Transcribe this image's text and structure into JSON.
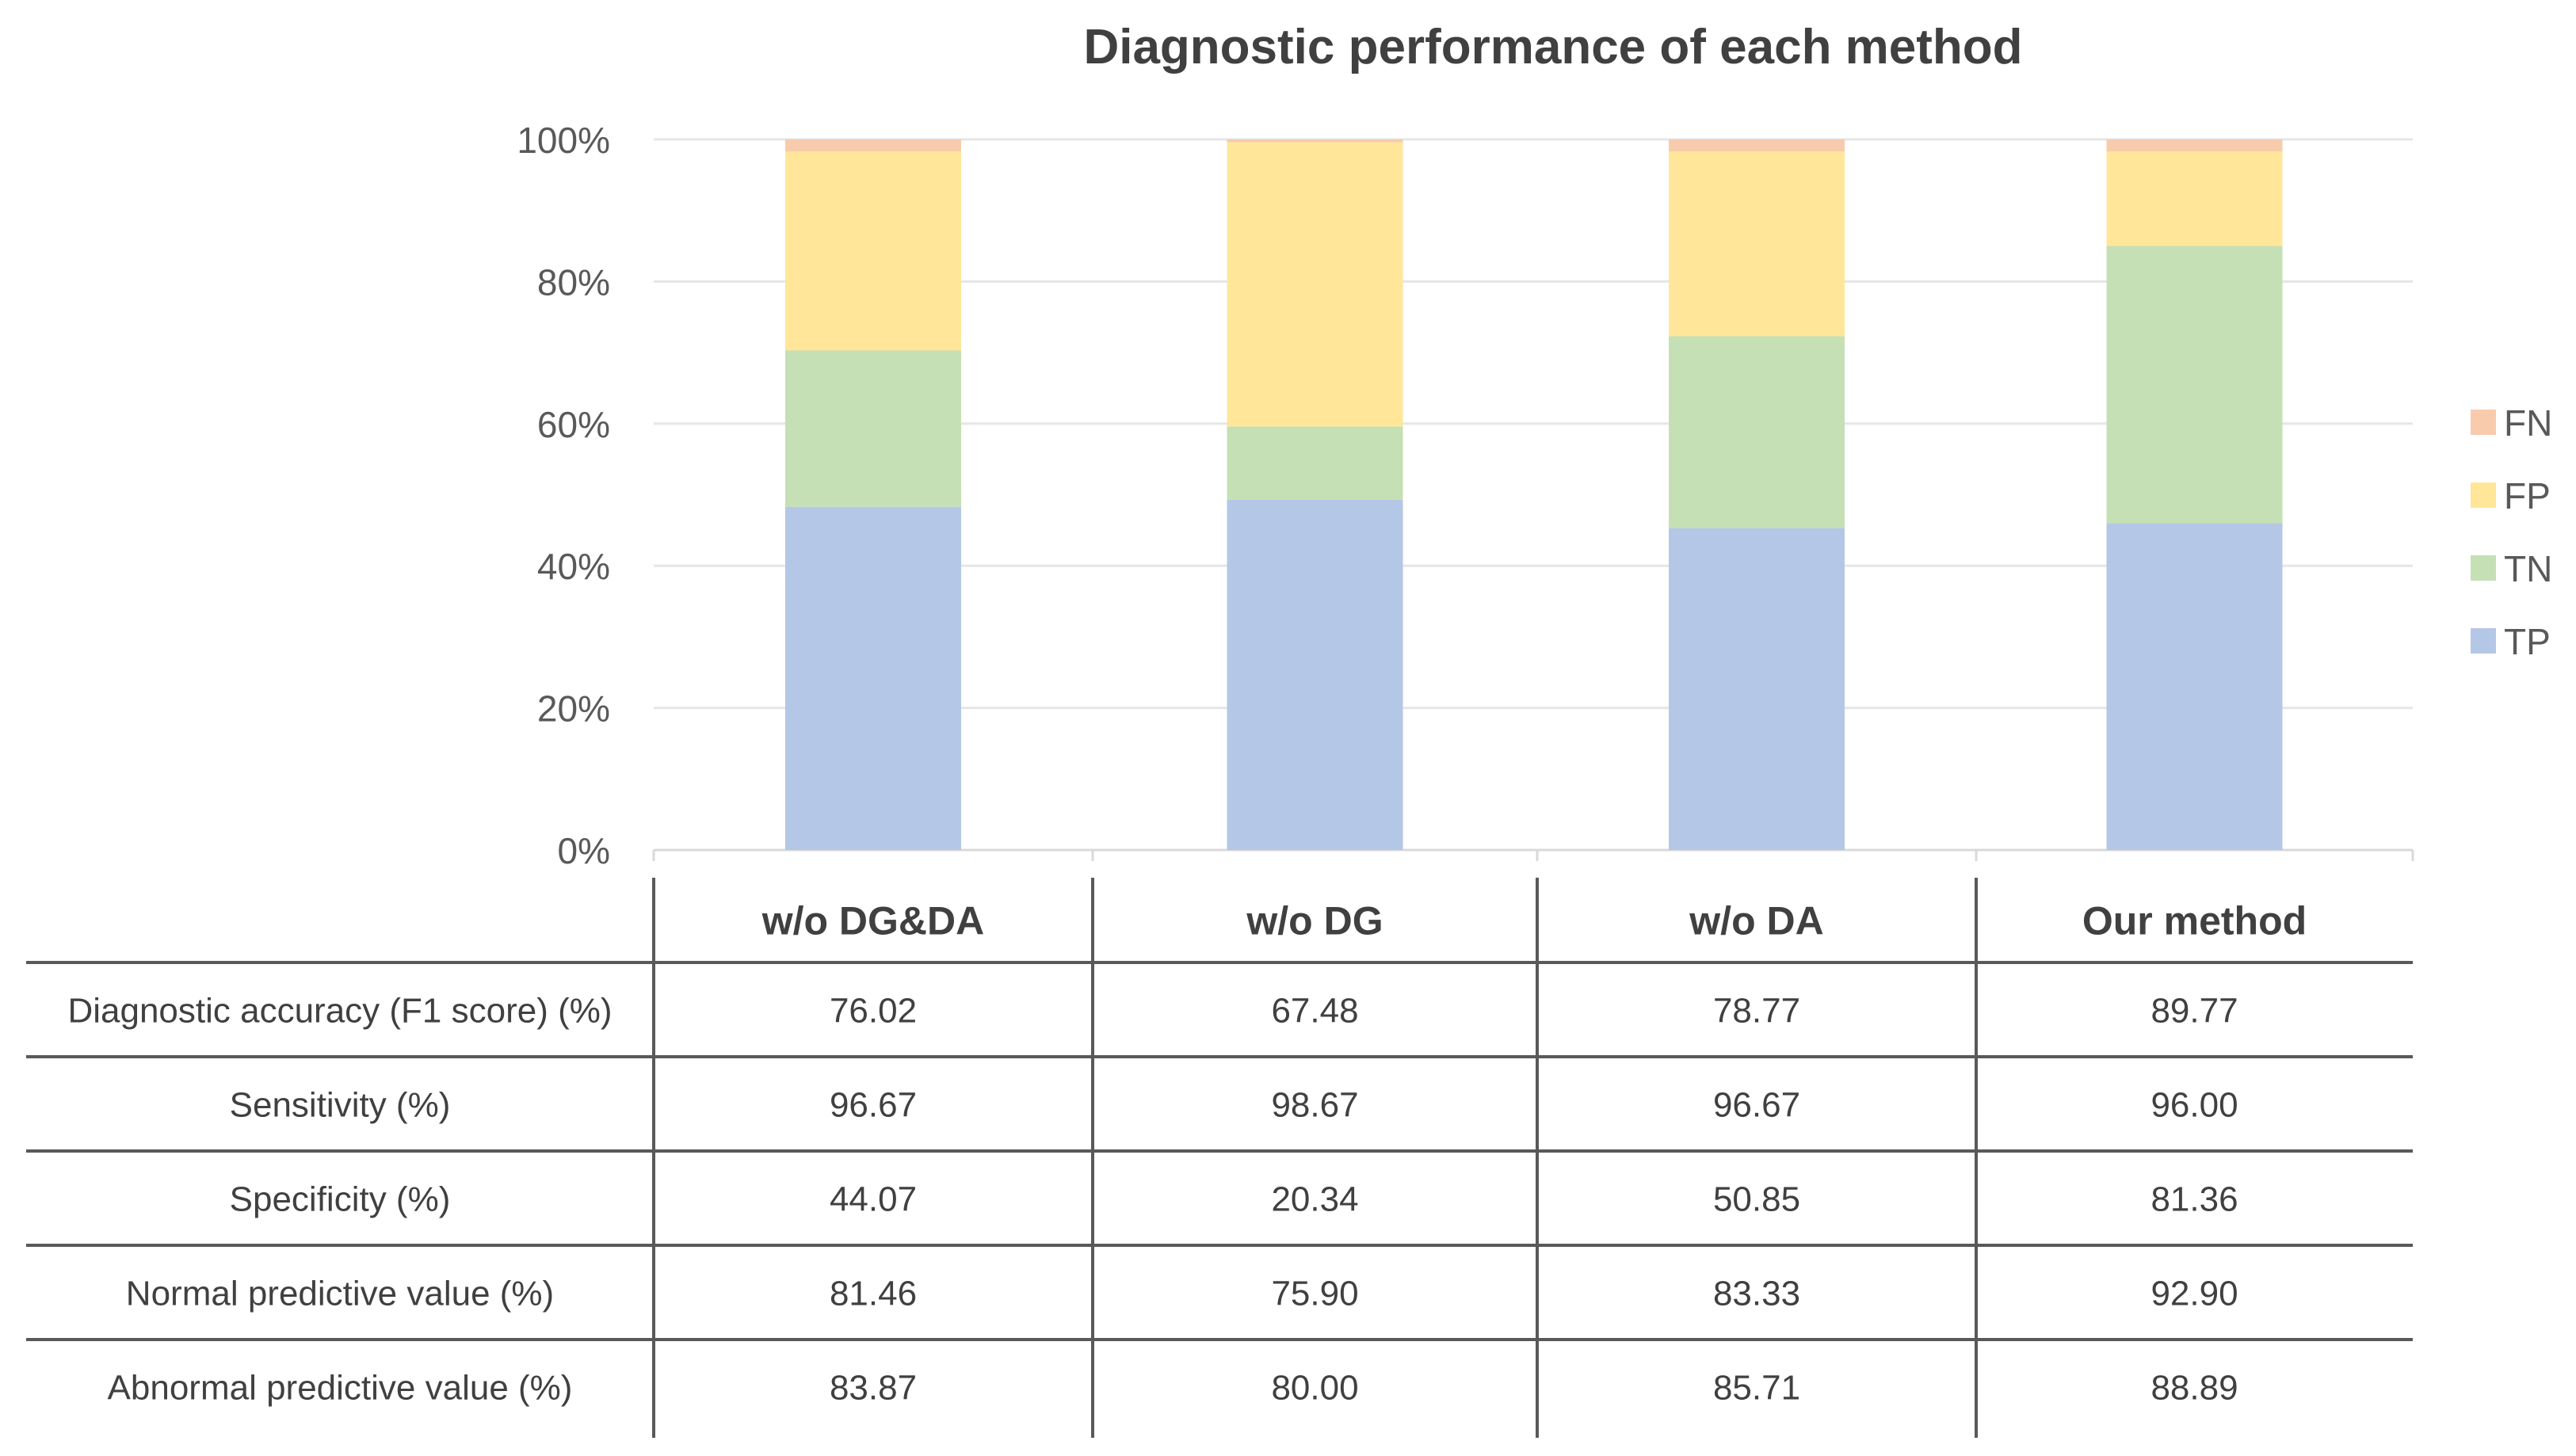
{
  "chart_data": {
    "type": "bar",
    "stacked": true,
    "title": "Diagnostic performance of each method",
    "categories": [
      "w/o DG&DA",
      "w/o DG",
      "w/o DA",
      "Our method"
    ],
    "ylim": [
      0,
      100
    ],
    "yticks": [
      "0%",
      "20%",
      "40%",
      "60%",
      "80%",
      "100%"
    ],
    "ytick_values": [
      0,
      20,
      40,
      60,
      80,
      100
    ],
    "grid": true,
    "legend_position": "right",
    "series": [
      {
        "name": "TP",
        "color": "#B4C7E7",
        "values": [
          48.3,
          49.3,
          45.3,
          46.0
        ]
      },
      {
        "name": "TN",
        "color": "#C5E0B4",
        "values": [
          22.0,
          10.3,
          27.0,
          39.0
        ]
      },
      {
        "name": "FP",
        "color": "#FFE699",
        "values": [
          28.0,
          40.0,
          26.0,
          13.3
        ]
      },
      {
        "name": "FN",
        "color": "#F8CBAD",
        "values": [
          1.7,
          0.4,
          1.7,
          1.7
        ]
      }
    ],
    "legend_order": [
      "FN",
      "FP",
      "TN",
      "TP"
    ],
    "table": {
      "columns": [
        "w/o DG&DA",
        "w/o DG",
        "w/o DA",
        "Our method"
      ],
      "rows": [
        {
          "label": "Diagnostic accuracy (F1 score) (%)",
          "values": [
            "76.02",
            "67.48",
            "78.77",
            "89.77"
          ]
        },
        {
          "label": "Sensitivity (%)",
          "values": [
            "96.67",
            "98.67",
            "96.67",
            "96.00"
          ]
        },
        {
          "label": "Specificity (%)",
          "values": [
            "44.07",
            "20.34",
            "50.85",
            "81.36"
          ]
        },
        {
          "label": "Normal predictive value (%)",
          "values": [
            "81.46",
            "75.90",
            "83.33",
            "92.90"
          ]
        },
        {
          "label": "Abnormal predictive value (%)",
          "values": [
            "83.87",
            "80.00",
            "85.71",
            "88.89"
          ]
        }
      ]
    }
  }
}
